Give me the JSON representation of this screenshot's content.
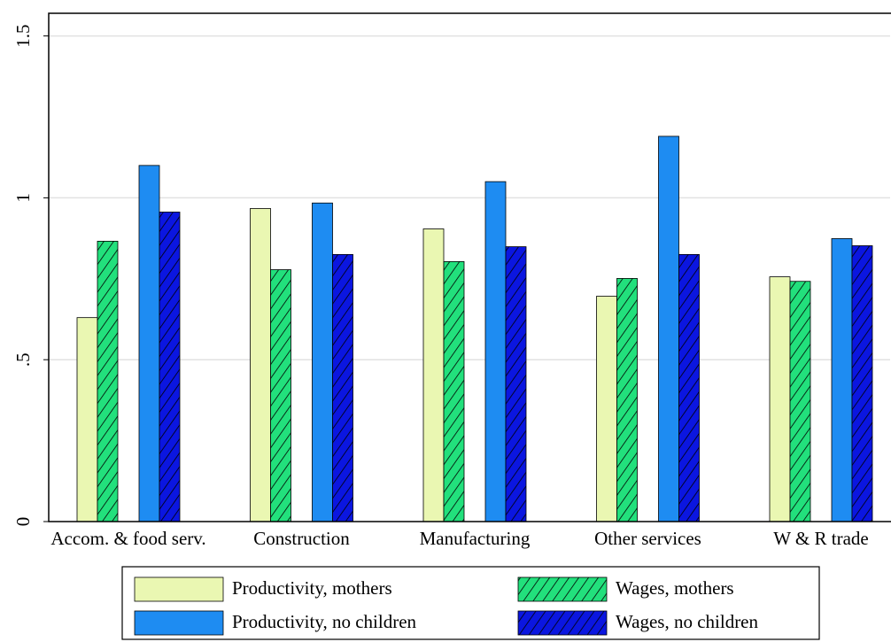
{
  "chart_data": {
    "type": "bar",
    "categories": [
      "Accom. & food serv.",
      "Construction",
      "Manufacturing",
      "Other services",
      "W & R trade"
    ],
    "series": [
      {
        "name": "Productivity, mothers",
        "color": "#eaf7b2",
        "values": [
          0.63,
          0.967,
          0.904,
          0.696,
          0.756
        ]
      },
      {
        "name": "Wages, mothers",
        "color": "#22e07c",
        "pattern": "hatch",
        "values": [
          0.866,
          0.778,
          0.803,
          0.751,
          0.742
        ]
      },
      {
        "name": "Productivity, no children",
        "color": "#1e8cf2",
        "values": [
          1.1,
          0.984,
          1.05,
          1.19,
          0.874
        ]
      },
      {
        "name": "Wages, no children",
        "color": "#0b16e0",
        "pattern": "hatch",
        "values": [
          0.956,
          0.825,
          0.849,
          0.825,
          0.852
        ]
      }
    ],
    "ylim": [
      0,
      1.57
    ],
    "yticks": [
      0,
      {
        "value": 0.5,
        "label": ".5"
      },
      1,
      1.5
    ],
    "grid": true,
    "legend": "bottom"
  }
}
